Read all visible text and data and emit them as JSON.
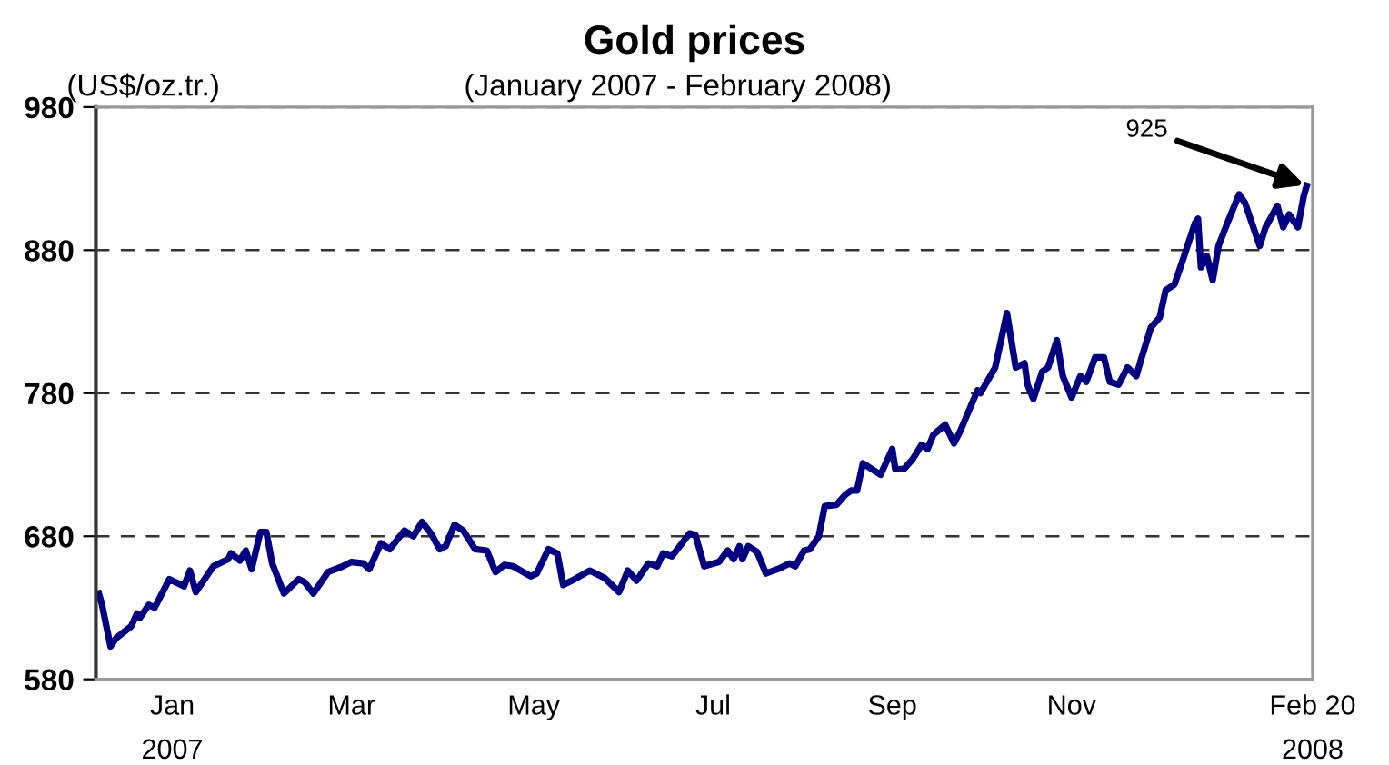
{
  "chart_data": {
    "type": "line",
    "title": "Gold prices",
    "subtitle": "(January 2007 - February 2008)",
    "ylabel": "(US$/oz.tr.)",
    "annotations": [
      {
        "text": "925",
        "x": "2008-02-18",
        "y": 925
      }
    ],
    "x": [
      "2007-01-03",
      "2007-01-04",
      "2007-01-07",
      "2007-01-09",
      "2007-01-14",
      "2007-01-16",
      "2007-01-17",
      "2007-01-20",
      "2007-01-22",
      "2007-01-25",
      "2007-01-27",
      "2007-02-01",
      "2007-02-03",
      "2007-02-05",
      "2007-02-08",
      "2007-02-11",
      "2007-02-16",
      "2007-02-17",
      "2007-02-20",
      "2007-02-22",
      "2007-02-24",
      "2007-02-27",
      "2007-03-01",
      "2007-03-03",
      "2007-03-07",
      "2007-03-12",
      "2007-03-14",
      "2007-03-17",
      "2007-03-22",
      "2007-03-27",
      "2007-03-30",
      "2007-04-03",
      "2007-04-05",
      "2007-04-09",
      "2007-04-12",
      "2007-04-17",
      "2007-04-20",
      "2007-04-23",
      "2007-04-26",
      "2007-04-29",
      "2007-05-01",
      "2007-05-04",
      "2007-05-07",
      "2007-05-11",
      "2007-05-15",
      "2007-05-18",
      "2007-05-21",
      "2007-05-24",
      "2007-05-30",
      "2007-06-01",
      "2007-06-05",
      "2007-06-08",
      "2007-06-10",
      "2007-06-13",
      "2007-06-19",
      "2007-06-24",
      "2007-06-29",
      "2007-07-02",
      "2007-07-05",
      "2007-07-09",
      "2007-07-12",
      "2007-07-14",
      "2007-07-17",
      "2007-07-20",
      "2007-07-23",
      "2007-07-25",
      "2007-07-28",
      "2007-08-02",
      "2007-08-05",
      "2007-08-07",
      "2007-08-09",
      "2007-08-10",
      "2007-08-12",
      "2007-08-15",
      "2007-08-18",
      "2007-08-22",
      "2007-08-26",
      "2007-08-28",
      "2007-08-31",
      "2007-09-02",
      "2007-09-05",
      "2007-09-07",
      "2007-09-11",
      "2007-09-14",
      "2007-09-16",
      "2007-09-18",
      "2007-09-20",
      "2007-09-23",
      "2007-09-26",
      "2007-09-30",
      "2007-10-01",
      "2007-10-04",
      "2007-10-07",
      "2007-10-10",
      "2007-10-12",
      "2007-10-14",
      "2007-10-18",
      "2007-10-21",
      "2007-10-23",
      "2007-10-29",
      "2007-10-30",
      "2007-11-04",
      "2007-11-08",
      "2007-11-11",
      "2007-11-14",
      "2007-11-15",
      "2007-11-17",
      "2007-11-20",
      "2007-11-22",
      "2007-11-25",
      "2007-11-27",
      "2007-11-30",
      "2007-12-03",
      "2007-12-05",
      "2007-12-08",
      "2007-12-11",
      "2007-12-13",
      "2007-12-16",
      "2007-12-19",
      "2007-12-22",
      "2007-12-24",
      "2007-12-27",
      "2007-12-30",
      "2008-01-01",
      "2008-01-04",
      "2008-01-06",
      "2008-01-07",
      "2008-01-11",
      "2008-01-12",
      "2008-01-13",
      "2008-01-15",
      "2008-01-17",
      "2008-01-19",
      "2008-01-22",
      "2008-01-26",
      "2008-01-28",
      "2008-02-02",
      "2008-02-04",
      "2008-02-08",
      "2008-02-10",
      "2008-02-12",
      "2008-02-15",
      "2008-02-17",
      "2008-02-18"
    ],
    "series": [
      {
        "color": "#000080",
        "values": [
          640,
          633,
          603,
          609,
          617,
          626,
          623,
          632,
          630,
          642,
          650,
          645,
          656,
          641,
          650,
          659,
          664,
          668,
          663,
          670,
          657,
          683,
          683,
          661,
          640,
          650,
          648,
          640,
          655,
          659,
          662,
          661,
          657,
          675,
          671,
          684,
          680,
          690,
          682,
          671,
          673,
          688,
          684,
          671,
          670,
          655,
          660,
          659,
          652,
          654,
          671,
          668,
          646,
          649,
          656,
          651,
          641,
          656,
          649,
          661,
          659,
          668,
          666,
          674,
          682,
          681,
          659,
          662,
          670,
          664,
          673,
          664,
          673,
          669,
          654,
          657,
          661,
          659,
          670,
          671,
          680,
          701,
          702,
          709,
          712,
          712,
          731,
          727,
          723,
          741,
          727,
          727,
          734,
          744,
          741,
          751,
          758,
          745,
          753,
          782,
          780,
          798,
          836,
          798,
          801,
          786,
          776,
          795,
          798,
          817,
          792,
          777,
          792,
          788,
          805,
          805,
          788,
          786,
          798,
          792,
          806,
          826,
          833,
          852,
          856,
          868,
          874,
          899,
          902,
          868,
          876,
          859,
          883,
          899,
          919,
          913,
          883,
          896,
          911,
          896,
          905,
          896,
          918,
          925
        ]
      }
    ],
    "xlim": [
      "2007-01-02",
      "2008-02-20"
    ],
    "xticks": [
      {
        "value": "2007-01-28",
        "label": "Jan\n2007"
      },
      {
        "value": "2007-03-30",
        "label": "Mar"
      },
      {
        "value": "2007-05-31",
        "label": "May"
      },
      {
        "value": "2007-07-31",
        "label": "Jul"
      },
      {
        "value": "2007-09-30",
        "label": "Sep"
      },
      {
        "value": "2007-11-30",
        "label": "Nov"
      },
      {
        "value": "2008-02-20",
        "label": "Feb 20\n2008"
      }
    ],
    "ylim": [
      580,
      980
    ],
    "yticks": [
      580,
      680,
      780,
      880,
      980
    ],
    "grid": "y",
    "line_style": "solid",
    "marker": "none",
    "legend": false
  }
}
